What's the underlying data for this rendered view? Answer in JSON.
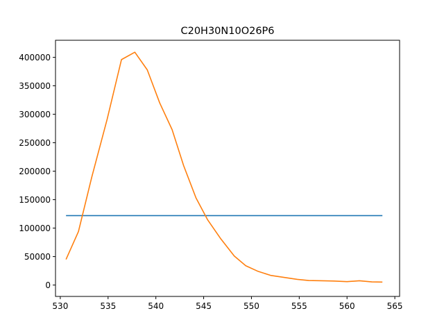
{
  "chart_data": {
    "type": "line",
    "title": "C20H30N10O26P6",
    "xlabel": "",
    "ylabel": "",
    "xlim": [
      529.5,
      565.5
    ],
    "ylim": [
      -20000,
      430000
    ],
    "x_ticks": [
      530,
      535,
      540,
      545,
      550,
      555,
      560,
      565
    ],
    "y_ticks": [
      0,
      50000,
      100000,
      150000,
      200000,
      250000,
      300000,
      350000,
      400000
    ],
    "grid": false,
    "legend": "none",
    "series": [
      {
        "color": "#1f77b4",
        "x": [
          530.6,
          563.7
        ],
        "y": [
          122000,
          122000
        ]
      },
      {
        "color": "#ff7f0e",
        "x": [
          530.6,
          531.9,
          533.3,
          534.9,
          536.4,
          537.8,
          539.1,
          540.4,
          541.7,
          542.9,
          544.2,
          545.4,
          546.8,
          548.2,
          549.4,
          550.7,
          552.0,
          553.4,
          554.8,
          556.0,
          557.4,
          558.6,
          560.0,
          561.3,
          562.6,
          563.7
        ],
        "y": [
          45000,
          94000,
          190000,
          291000,
          396000,
          409000,
          378000,
          320000,
          273000,
          210000,
          153000,
          115000,
          81000,
          51000,
          34000,
          24000,
          17000,
          13500,
          10000,
          8000,
          7500,
          7000,
          6000,
          7500,
          5500,
          5200
        ]
      }
    ]
  }
}
